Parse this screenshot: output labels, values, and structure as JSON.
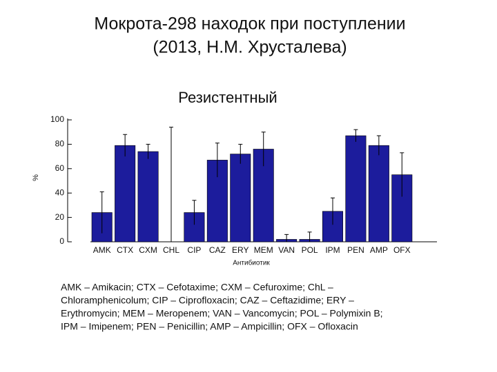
{
  "slide": {
    "title_lines": [
      "Мокрота-298 находок при поступлении",
      "(2013, Н.М. Хрусталева)"
    ]
  },
  "chart_data": {
    "type": "bar",
    "title": "Резистентный",
    "x_label": "Антибиотик",
    "y_label": "%",
    "categories": [
      "AMK",
      "CTX",
      "CXM",
      "CHL",
      "CIP",
      "CAZ",
      "ERY",
      "MEM",
      "VAN",
      "POL",
      "IPM",
      "PEN",
      "AMP",
      "OFX"
    ],
    "values": [
      24,
      79,
      74,
      0,
      24,
      67,
      72,
      76,
      2,
      2,
      25,
      87,
      79,
      55
    ],
    "errors": [
      17,
      9,
      6,
      94,
      10,
      14,
      8,
      14,
      4,
      6,
      11,
      5,
      8,
      18
    ],
    "color": "#1c1c9c",
    "ylim": [
      0,
      100
    ],
    "yticks": [
      0,
      20,
      40,
      60,
      80,
      100
    ]
  },
  "footnote_lines": [
    "AMK – Amikacin; CTX – Cefotaxime; CXM – Cefuroxime; ChL –",
    "Chloramphenicolum; CIP – Ciprofloxacin; CAZ – Ceftazidime; ERY –",
    "Erythromycin; MEM – Meropenem; VAN – Vancomycin; POL – Polymixin B;",
    "IPM – Imipenem; PEN – Penicillin; AMP – Ampicillin; OFX – Ofloxacin"
  ]
}
